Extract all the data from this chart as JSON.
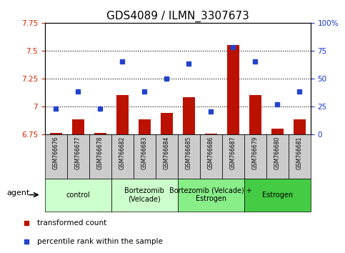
{
  "title": "GDS4089 / ILMN_3307673",
  "samples": [
    "GSM766676",
    "GSM766677",
    "GSM766678",
    "GSM766682",
    "GSM766683",
    "GSM766684",
    "GSM766685",
    "GSM766686",
    "GSM766687",
    "GSM766679",
    "GSM766680",
    "GSM766681"
  ],
  "bar_values": [
    6.76,
    6.88,
    6.76,
    7.1,
    6.88,
    6.94,
    7.08,
    6.755,
    7.55,
    7.1,
    6.8,
    6.88
  ],
  "scatter_percentiles": [
    23,
    38,
    23,
    65,
    38,
    50,
    63,
    20,
    78,
    65,
    27,
    38
  ],
  "ylim_left": [
    6.75,
    7.75
  ],
  "ylim_right": [
    0,
    100
  ],
  "yticks_left": [
    6.75,
    7.0,
    7.25,
    7.5,
    7.75
  ],
  "ytick_labels_left": [
    "6.75",
    "7",
    "7.25",
    "7.5",
    "7.75"
  ],
  "yticks_right": [
    0,
    25,
    50,
    75,
    100
  ],
  "ytick_labels_right": [
    "0",
    "25",
    "50",
    "75",
    "100%"
  ],
  "bar_color": "#bb1100",
  "scatter_color": "#2244cc",
  "bar_base": 6.75,
  "groups": [
    {
      "label": "control",
      "start": 0,
      "end": 3,
      "color": "#ccffcc"
    },
    {
      "label": "Bortezomib\n(Velcade)",
      "start": 3,
      "end": 6,
      "color": "#ccffcc"
    },
    {
      "label": "Bortezomib (Velcade) +\nEstrogen",
      "start": 6,
      "end": 9,
      "color": "#88ee88"
    },
    {
      "label": "Estrogen",
      "start": 9,
      "end": 12,
      "color": "#44cc44"
    }
  ],
  "agent_label": "agent",
  "legend_bar_label": "transformed count",
  "legend_scatter_label": "percentile rank within the sample",
  "grid_dotted_values": [
    7.0,
    7.25,
    7.5
  ],
  "title_fontsize": 11,
  "tick_fontsize": 7.5,
  "sample_label_fontsize": 5.5,
  "group_label_fontsize": 7,
  "axis_label_color_left": "#cc2200",
  "axis_label_color_right": "#1133cc",
  "sample_box_color": "#cccccc",
  "figure_width": 4.83,
  "figure_height": 3.54,
  "figure_dpi": 100
}
